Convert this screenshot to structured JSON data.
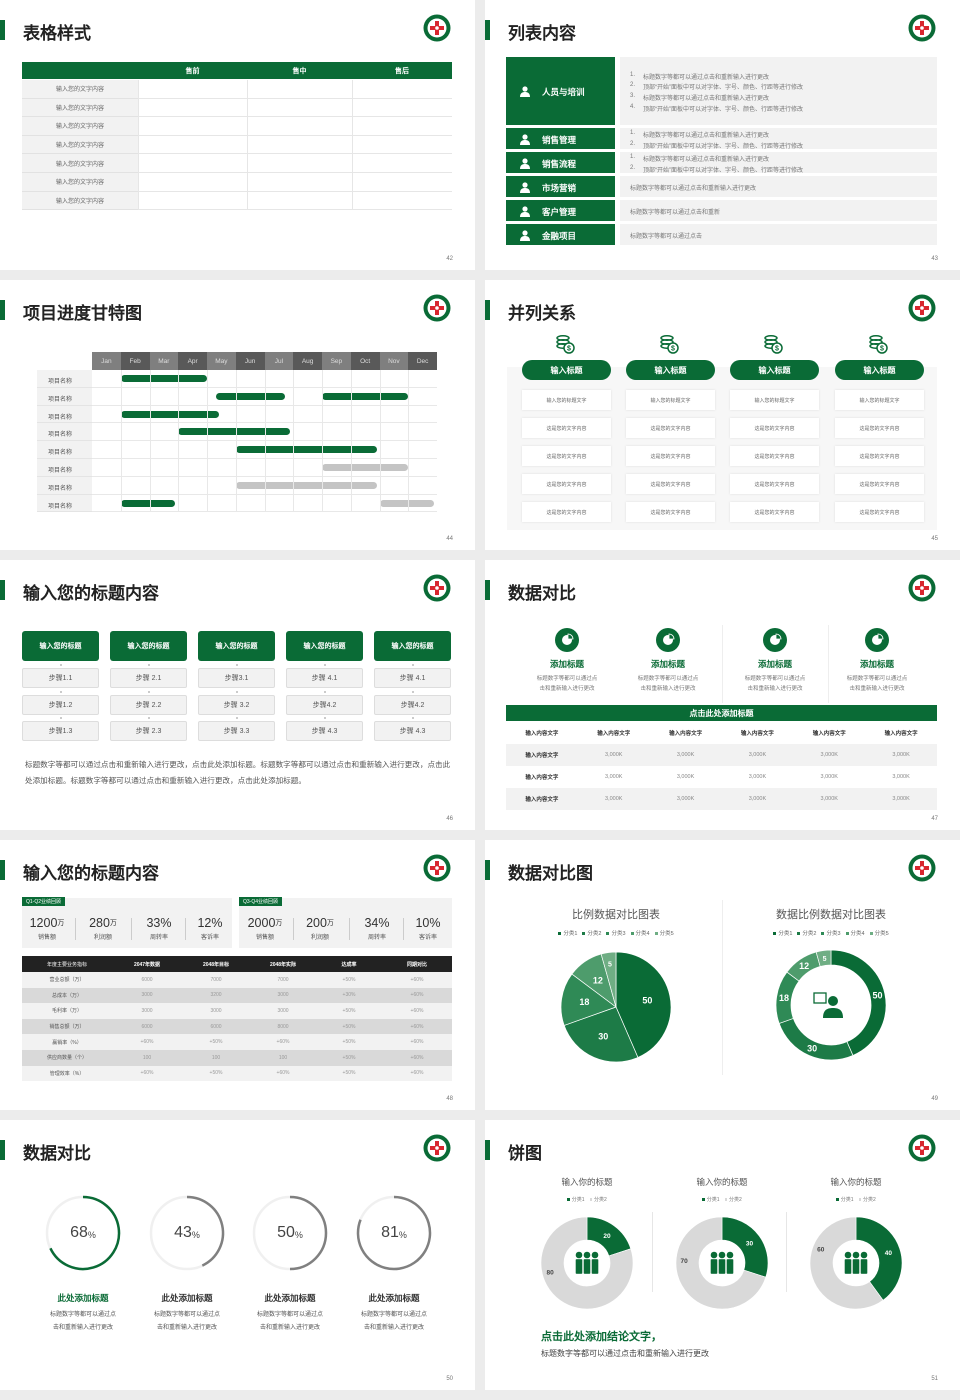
{
  "colors": {
    "accent": "#0a6b36",
    "pie": [
      "#0a6b36",
      "#1d7b47",
      "#2f8a56",
      "#4e9c6c",
      "#6fae84"
    ],
    "gray_bar": "#c4c4c4",
    "ring_gray": "#808080",
    "table_dark": "#222222"
  },
  "slides": [
    {
      "page": "42",
      "title": "表格样式",
      "table": {
        "headers": [
          "",
          "售前",
          "售中",
          "售后"
        ],
        "rows": [
          "输入您的文字内容",
          "输入您的文字内容",
          "输入您的文字内容",
          "输入您的文字内容",
          "输入您的文字内容",
          "输入您的文字内容",
          "输入您的文字内容"
        ]
      }
    },
    {
      "page": "43",
      "title": "列表内容",
      "items": [
        {
          "label": "人员与培训",
          "icon": "training-icon",
          "lines": [
            {
              "n": "1.",
              "t": "标题数字等都可以通过点击和重新输入进行更改"
            },
            {
              "n": "2.",
              "t": "顶部“开始”面板中可以对字体、字号、颜色、行距等进行修改"
            },
            {
              "n": "3.",
              "t": "标题数字等都可以通过点击和重新输入进行更改"
            },
            {
              "n": "4.",
              "t": "顶部“开始”面板中可以对字体、字号、颜色、行距等进行修改"
            }
          ]
        },
        {
          "label": "销售管理",
          "icon": "sales-manager-icon",
          "lines": [
            {
              "n": "1.",
              "t": "标题数字等都可以通过点击和重新输入进行更改"
            },
            {
              "n": "2.",
              "t": "顶部“开始”面板中可以对字体、字号、颜色、行距等进行修改"
            }
          ]
        },
        {
          "label": "销售流程",
          "icon": "recycle-icon",
          "lines": [
            {
              "n": "1.",
              "t": "标题数字等都可以通过点击和重新输入进行更改"
            },
            {
              "n": "2.",
              "t": "顶部“开始”面板中可以对字体、字号、颜色、行距等进行修改"
            }
          ]
        },
        {
          "label": "市场营销",
          "icon": "bar-chart-icon",
          "lines": [
            {
              "n": "",
              "t": "标题数字等都可以通过点击和重新输入进行更改"
            }
          ]
        },
        {
          "label": "客户管理",
          "icon": "users-icon",
          "lines": [
            {
              "n": "",
              "t": "标题数字等都可以通过点击和重新"
            }
          ]
        },
        {
          "label": "金融项目",
          "icon": "finance-icon",
          "lines": [
            {
              "n": "",
              "t": "标题数字等都可以通过点击"
            }
          ]
        }
      ]
    },
    {
      "page": "44",
      "title": "项目进度甘特图"
    },
    {
      "page": "45",
      "title": "并列关系",
      "icon": "coins-icon",
      "columns": [
        {
          "title": "输入标题",
          "rows": [
            "输入您的标题文字",
            "这是您的文字内容",
            "这是您的文字内容",
            "这是您的文字内容",
            "这是您的文字内容"
          ]
        },
        {
          "title": "输入标题",
          "rows": [
            "输入您的标题文字",
            "这是您的文字内容",
            "这是您的文字内容",
            "这是您的文字内容",
            "这是您的文字内容"
          ]
        },
        {
          "title": "输入标题",
          "rows": [
            "输入您的标题文字",
            "这是您的文字内容",
            "这是您的文字内容",
            "这是您的文字内容",
            "这是您的文字内容"
          ]
        },
        {
          "title": "输入标题",
          "rows": [
            "输入您的标题文字",
            "这是您的文字内容",
            "这是您的文字内容",
            "这是您的文字内容",
            "这是您的文字内容"
          ]
        }
      ]
    },
    {
      "page": "46",
      "title": "输入您的标题内容",
      "columns": [
        {
          "title": "输入您的标题",
          "steps": [
            "步骤1.1",
            "步骤1.2",
            "步骤1.3"
          ]
        },
        {
          "title": "输入您的标题",
          "steps": [
            "步骤 2.1",
            "步骤 2.2",
            "步骤 2.3"
          ]
        },
        {
          "title": "输入您的标题",
          "steps": [
            "步骤3.1",
            "步骤 3.2",
            "步骤 3.3"
          ]
        },
        {
          "title": "输入您的标题",
          "steps": [
            "步骤 4.1",
            "步骤4.2",
            "步骤 4.3"
          ]
        },
        {
          "title": "输入您的标题",
          "steps": [
            "步骤 4.1",
            "步骤4.2",
            "步骤 4.3"
          ]
        }
      ],
      "paragraph": "标题数字等都可以通过点击和重新输入进行更改，点击此处添加标题。标题数字等都可以通过点击和重新输入进行更改，点击此处添加标题。标题数字等都可以通过点击和重新输入进行更改，点击此处添加标题。"
    },
    {
      "page": "47",
      "title": "数据对比",
      "features": [
        {
          "title": "添加标题",
          "lines": [
            "标题数字等都可以通过点",
            "击和重新输入进行更改"
          ]
        },
        {
          "title": "添加标题",
          "lines": [
            "标题数字等都可以通过点",
            "击和重新输入进行更改"
          ]
        },
        {
          "title": "添加标题",
          "lines": [
            "标题数字等都可以通过点",
            "击和重新输入进行更改"
          ]
        },
        {
          "title": "添加标题",
          "lines": [
            "标题数字等都可以通过点",
            "击和重新输入进行更改"
          ]
        }
      ],
      "banner": "点击此处添加标题",
      "table": {
        "headers": [
          "输入内容文字",
          "输入内容文字",
          "输入内容文字",
          "输入内容文字",
          "输入内容文字",
          "输入内容文字"
        ],
        "rows": [
          [
            "输入内容文字",
            "3,000K",
            "3,000K",
            "3,000K",
            "3,000K",
            "3,000K"
          ],
          [
            "输入内容文字",
            "3,000K",
            "3,000K",
            "3,000K",
            "3,000K",
            "3,000K"
          ],
          [
            "输入内容文字",
            "3,000K",
            "3,000K",
            "3,000K",
            "3,000K",
            "3,000K"
          ]
        ]
      }
    },
    {
      "page": "48",
      "title": "输入您的标题内容",
      "panels": [
        {
          "tag": "Q1-Q2业绩回顾",
          "stats": [
            {
              "v": "1200",
              "u": "万",
              "l": "销售额"
            },
            {
              "v": "280",
              "u": "万",
              "l": "利润额"
            },
            {
              "v": "33%",
              "u": "",
              "l": "周转率"
            },
            {
              "v": "12%",
              "u": "",
              "l": "客诉率"
            }
          ]
        },
        {
          "tag": "Q3-Q4业绩回顾",
          "stats": [
            {
              "v": "2000",
              "u": "万",
              "l": "销售额"
            },
            {
              "v": "200",
              "u": "万",
              "l": "利润额"
            },
            {
              "v": "34%",
              "u": "",
              "l": "周转率"
            },
            {
              "v": "10%",
              "u": "",
              "l": "客诉率"
            }
          ]
        }
      ],
      "table": {
        "headers": [
          "年度主要业务指标",
          "2047年数据",
          "2048年目标",
          "2048年实际",
          "达成率",
          "同期对比"
        ],
        "rows": [
          [
            "营业总额（万）",
            "6000",
            "7000",
            "7000",
            "+50%",
            "+60%"
          ],
          [
            "总成本（万）",
            "3000",
            "3200",
            "3000",
            "+30%",
            "+60%"
          ],
          [
            "毛利率（万）",
            "3000",
            "3000",
            "3000",
            "+50%",
            "+60%"
          ],
          [
            "销售总额（万）",
            "6000",
            "6000",
            "8000",
            "+50%",
            "+60%"
          ],
          [
            "赢销率（%）",
            "+60%",
            "+50%",
            "+60%",
            "+50%",
            "+60%"
          ],
          [
            "供应商数量（个）",
            "100",
            "100",
            "100",
            "+50%",
            "+60%"
          ],
          [
            "管理效率（%）",
            "+60%",
            "+50%",
            "+60%",
            "+50%",
            "+60%"
          ]
        ]
      }
    },
    {
      "page": "49",
      "title": "数据对比图"
    },
    {
      "page": "50",
      "title": "数据对比"
    },
    {
      "page": "51",
      "title": "饼图",
      "conclusion": "点击此处添加结论文字，",
      "conclusion_desc": "标题数字等都可以通过点击和重新输入进行更改"
    }
  ],
  "chart_data": [
    {
      "slide": "44",
      "type": "gantt",
      "months": [
        "Jan",
        "Feb",
        "Mar",
        "Apr",
        "May",
        "Jun",
        "Jul",
        "Aug",
        "Sep",
        "Oct",
        "Nov",
        "Dec"
      ],
      "rows": [
        {
          "label": "项目名称",
          "bars": [
            {
              "start": 1.0,
              "end": 4.0,
              "status": "active"
            }
          ]
        },
        {
          "label": "项目名称",
          "bars": [
            {
              "start": 4.3,
              "end": 6.7,
              "status": "active"
            },
            {
              "start": 8.0,
              "end": 11.0,
              "status": "active"
            }
          ]
        },
        {
          "label": "项目名称",
          "bars": [
            {
              "start": 1.0,
              "end": 4.4,
              "status": "active"
            }
          ]
        },
        {
          "label": "项目名称",
          "bars": [
            {
              "start": 3.0,
              "end": 6.9,
              "status": "active"
            }
          ]
        },
        {
          "label": "项目名称",
          "bars": [
            {
              "start": 5.0,
              "end": 9.9,
              "status": "active"
            }
          ]
        },
        {
          "label": "项目名称",
          "bars": [
            {
              "start": 8.0,
              "end": 11.0,
              "status": "planned"
            }
          ]
        },
        {
          "label": "项目名称",
          "bars": [
            {
              "start": 5.0,
              "end": 9.9,
              "status": "planned"
            }
          ]
        },
        {
          "label": "项目名称",
          "bars": [
            {
              "start": 1.0,
              "end": 2.9,
              "status": "active"
            },
            {
              "start": 10.0,
              "end": 11.9,
              "status": "planned"
            }
          ]
        }
      ]
    },
    {
      "slide": "49",
      "type": "pie",
      "title": "比例数据对比图表",
      "categories": [
        "分类1",
        "分类2",
        "分类3",
        "分类4",
        "分类5"
      ],
      "values": [
        50,
        30,
        18,
        12,
        5
      ],
      "legend": "top"
    },
    {
      "slide": "49",
      "type": "donut",
      "title": "数据比例数据对比图表",
      "categories": [
        "分类1",
        "分类2",
        "分类3",
        "分类4",
        "分类5"
      ],
      "values": [
        50,
        30,
        18,
        12,
        5
      ],
      "legend": "top",
      "center_icon": "customer-service-icon"
    },
    {
      "slide": "50",
      "type": "progress-rings",
      "items": [
        {
          "value": 68,
          "label": "68",
          "unit": "%",
          "title": "此处添加标题",
          "lines": [
            "标题数字等都可以通过点",
            "击和重新输入进行更改"
          ],
          "highlight": true
        },
        {
          "value": 43,
          "label": "43",
          "unit": "%",
          "title": "此处添加标题",
          "lines": [
            "标题数字等都可以通过点",
            "击和重新输入进行更改"
          ],
          "highlight": false
        },
        {
          "value": 50,
          "label": "50",
          "unit": "%",
          "title": "此处添加标题",
          "lines": [
            "标题数字等都可以通过点",
            "击和重新输入进行更改"
          ],
          "highlight": false
        },
        {
          "value": 81,
          "label": "81",
          "unit": "%",
          "title": "此处添加标题",
          "lines": [
            "标题数字等都可以通过点",
            "击和重新输入进行更改"
          ],
          "highlight": false
        }
      ]
    },
    {
      "slide": "51",
      "type": "donut",
      "charts": [
        {
          "title": "输入你的标题",
          "categories": [
            "分类1",
            "分类2"
          ],
          "values": [
            20,
            80
          ]
        },
        {
          "title": "输入你的标题",
          "categories": [
            "分类1",
            "分类2"
          ],
          "values": [
            30,
            70
          ]
        },
        {
          "title": "输入你的标题",
          "categories": [
            "分类1",
            "分类2"
          ],
          "values": [
            40,
            60
          ]
        }
      ],
      "legend": "top",
      "center_icon": "team-icon"
    }
  ]
}
